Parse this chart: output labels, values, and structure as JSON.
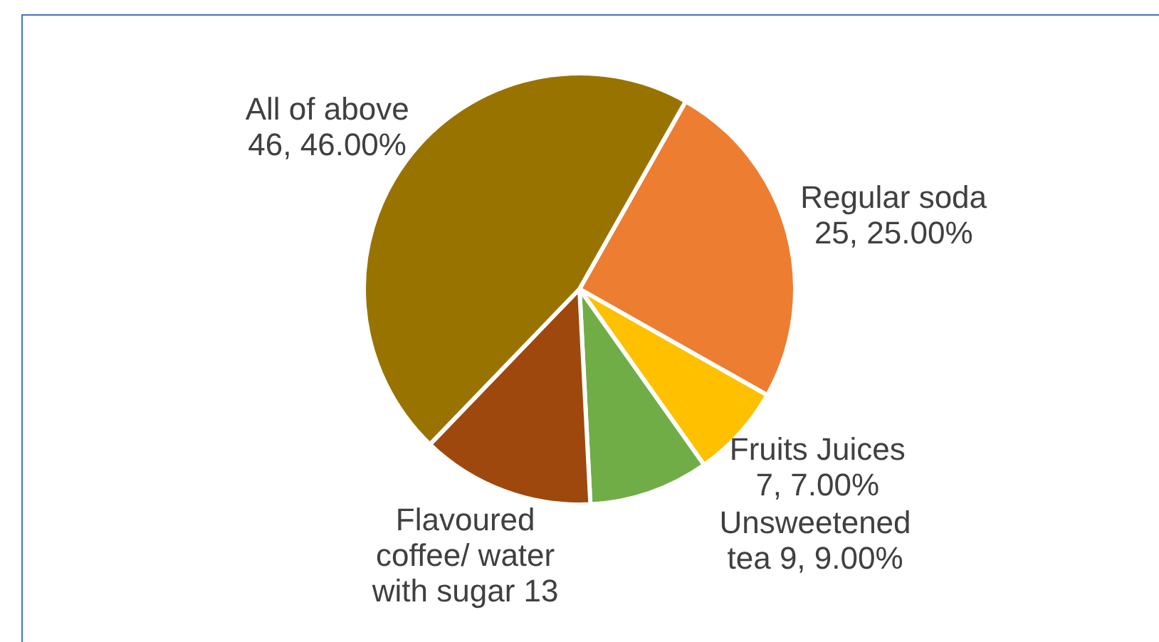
{
  "chart_data": {
    "type": "pie",
    "categories": [
      "Regular soda",
      "Fruits Juices",
      "Unsweetened tea",
      "Flavoured coffee/ water with sugar",
      "All of above"
    ],
    "values": [
      25,
      7,
      9,
      13,
      46
    ],
    "colors": [
      "#ed7d31",
      "#ffc000",
      "#70ad47",
      "#9e480e",
      "#997300"
    ],
    "value_labels": [
      "25, 25.00%",
      "7, 7.00%",
      "9, 9.00%",
      "13",
      "46, 46.00%"
    ],
    "legend": false
  }
}
